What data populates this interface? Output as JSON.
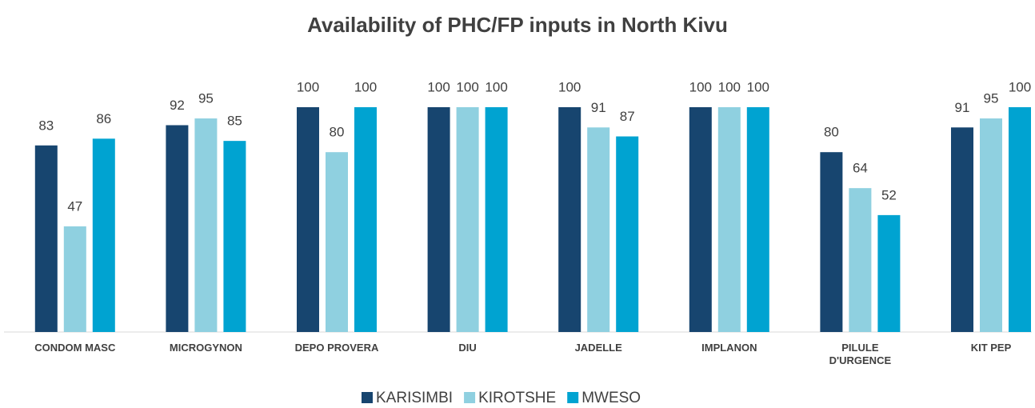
{
  "chart_data": {
    "type": "bar",
    "title": "Availability of PHC/FP inputs in North Kivu",
    "categories": [
      "CONDOM MASC",
      "MICROGYNON",
      "DEPO PROVERA",
      "DIU",
      "JADELLE",
      "IMPLANON",
      "PILULE D'URGENCE",
      "KIT PEP"
    ],
    "series": [
      {
        "name": "KARISIMBI",
        "color": "#17456f",
        "values": [
          83,
          92,
          100,
          100,
          100,
          100,
          80,
          91
        ]
      },
      {
        "name": "KIROTSHE",
        "color": "#8fd0e0",
        "values": [
          47,
          95,
          80,
          100,
          91,
          100,
          64,
          95
        ]
      },
      {
        "name": "MWESO",
        "color": "#00a3d1",
        "values": [
          86,
          85,
          100,
          100,
          87,
          100,
          52,
          100
        ]
      }
    ],
    "ylim": [
      0,
      100
    ],
    "grid": false,
    "legend": "bottom"
  }
}
